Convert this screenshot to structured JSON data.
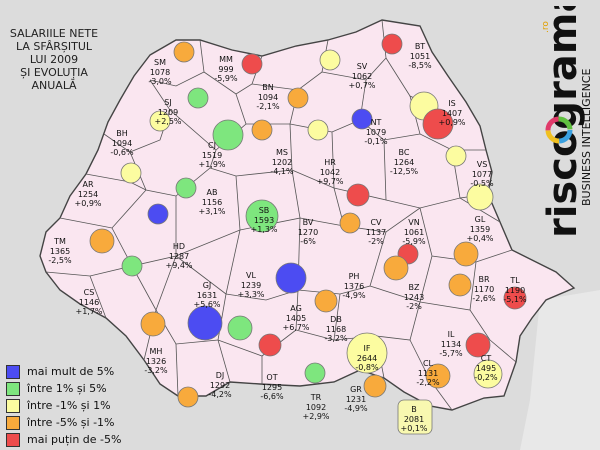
{
  "title": "SALARIILE NETE\nLA SFÂRȘITUL\nLUI 2009\nȘI EVOLUȚIA\nANUALĂ",
  "legend": [
    {
      "key": "blue",
      "label": "mai mult de 5%",
      "color": "#4c4cf2"
    },
    {
      "key": "green",
      "label": "între 1% și 5%",
      "color": "#7ee67e"
    },
    {
      "key": "yellow",
      "label": "între -1% și 1%",
      "color": "#fcfca0"
    },
    {
      "key": "orange",
      "label": "între -5% și -1%",
      "color": "#f8aa3c"
    },
    {
      "key": "red",
      "label": "mai puțin de -5%",
      "color": "#ee4c4c"
    }
  ],
  "brand": {
    "name": "riscograma",
    "suffix": ".ro",
    "tagline": "BUSINESS INTELLIGENCE"
  },
  "counties": [
    {
      "code": "SM",
      "salary": "1078",
      "change": "-3,0%",
      "cls": "orange"
    },
    {
      "code": "MM",
      "salary": "999",
      "change": "-5,9%",
      "cls": "red"
    },
    {
      "code": "SV",
      "salary": "1062",
      "change": "+0,7%",
      "cls": "yellow"
    },
    {
      "code": "BT",
      "salary": "1051",
      "change": "-8,5%",
      "cls": "red"
    },
    {
      "code": "SJ",
      "salary": "1209",
      "change": "+2,5%",
      "cls": "green"
    },
    {
      "code": "BN",
      "salary": "1094",
      "change": "-2,1%",
      "cls": "orange"
    },
    {
      "code": "IS",
      "salary": "1407",
      "change": "+0,9%",
      "cls": "yellow"
    },
    {
      "code": "BH",
      "salary": "1094",
      "change": "-0,6%",
      "cls": "yellow"
    },
    {
      "code": "CJ",
      "salary": "1519",
      "change": "+1,9%",
      "cls": "green"
    },
    {
      "code": "MS",
      "salary": "1202",
      "change": "-4,1%",
      "cls": "orange"
    },
    {
      "code": "NT",
      "salary": "1079",
      "change": "-0,1%",
      "cls": "yellow"
    },
    {
      "code": "HR",
      "salary": "1042",
      "change": "+9,7%",
      "cls": "blue"
    },
    {
      "code": "BC",
      "salary": "1264",
      "change": "-12,5%",
      "cls": "red"
    },
    {
      "code": "VS",
      "salary": "1077",
      "change": "-0,5%",
      "cls": "yellow"
    },
    {
      "code": "AR",
      "salary": "1254",
      "change": "+0,9%",
      "cls": "yellow"
    },
    {
      "code": "AB",
      "salary": "1156",
      "change": "+3,1%",
      "cls": "green"
    },
    {
      "code": "SB",
      "salary": "1593",
      "change": "+1,3%",
      "cls": "green"
    },
    {
      "code": "BV",
      "salary": "1270",
      "change": "-6%",
      "cls": "red"
    },
    {
      "code": "CV",
      "salary": "1137",
      "change": "-2%",
      "cls": "orange"
    },
    {
      "code": "VN",
      "salary": "1061",
      "change": "-5,9%",
      "cls": "red"
    },
    {
      "code": "GL",
      "salary": "1359",
      "change": "+0,4%",
      "cls": "yellow"
    },
    {
      "code": "TM",
      "salary": "1365",
      "change": "-2,5%",
      "cls": "orange"
    },
    {
      "code": "HD",
      "salary": "1287",
      "change": "+9,4%",
      "cls": "blue"
    },
    {
      "code": "CS",
      "salary": "1146",
      "change": "+1,7%",
      "cls": "green"
    },
    {
      "code": "GJ",
      "salary": "1631",
      "change": "+5,6%",
      "cls": "blue"
    },
    {
      "code": "VL",
      "salary": "1239",
      "change": "+3,3%",
      "cls": "green"
    },
    {
      "code": "AG",
      "salary": "1405",
      "change": "+6,7%",
      "cls": "blue"
    },
    {
      "code": "PH",
      "salary": "1376",
      "change": "-4,9%",
      "cls": "orange"
    },
    {
      "code": "BZ",
      "salary": "1243",
      "change": "-2%",
      "cls": "orange"
    },
    {
      "code": "BR",
      "salary": "1170",
      "change": "-2,6%",
      "cls": "orange"
    },
    {
      "code": "TL",
      "salary": "1190",
      "change": "-5,1%",
      "cls": "red"
    },
    {
      "code": "DB",
      "salary": "1168",
      "change": "-3,2%",
      "cls": "orange"
    },
    {
      "code": "IF",
      "salary": "2644",
      "change": "-0,8%",
      "cls": "yellow"
    },
    {
      "code": "IL",
      "salary": "1134",
      "change": "-5,7%",
      "cls": "red"
    },
    {
      "code": "CL",
      "salary": "1131",
      "change": "-2,2%",
      "cls": "orange"
    },
    {
      "code": "CT",
      "salary": "1495",
      "change": "-0,2%",
      "cls": "yellow"
    },
    {
      "code": "MH",
      "salary": "1326",
      "change": "-3,2%",
      "cls": "orange"
    },
    {
      "code": "DJ",
      "salary": "1292",
      "change": "-4,2%",
      "cls": "orange"
    },
    {
      "code": "OT",
      "salary": "1295",
      "change": "-6,6%",
      "cls": "red"
    },
    {
      "code": "TR",
      "salary": "1092",
      "change": "+2,9%",
      "cls": "green"
    },
    {
      "code": "GR",
      "salary": "1231",
      "change": "-4,9%",
      "cls": "orange"
    },
    {
      "code": "B",
      "salary": "2081",
      "change": "+0,1%",
      "cls": "yellow"
    }
  ]
}
